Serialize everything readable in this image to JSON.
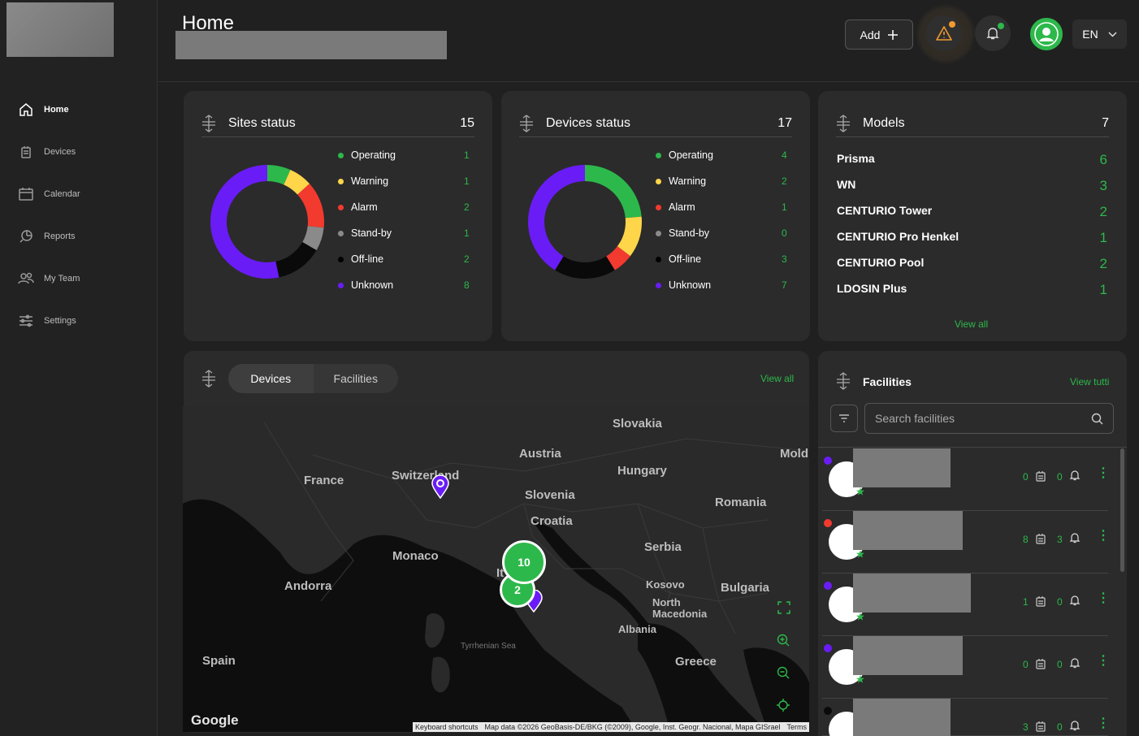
{
  "sidebar": {
    "items": [
      {
        "label": "Home",
        "icon": "home-icon",
        "active": true
      },
      {
        "label": "Devices",
        "icon": "device-icon"
      },
      {
        "label": "Calendar",
        "icon": "calendar-icon"
      },
      {
        "label": "Reports",
        "icon": "reports-icon"
      },
      {
        "label": "My Team",
        "icon": "team-icon"
      },
      {
        "label": "Settings",
        "icon": "settings-icon"
      }
    ]
  },
  "header": {
    "title": "Home",
    "add_label": "Add",
    "language": "EN"
  },
  "colors": {
    "operating": "#2db84b",
    "warning": "#ffd54a",
    "alarm": "#f23a2f",
    "standby": "#8a8a8a",
    "offline": "#0a0a0a",
    "unknown": "#6a1cf6"
  },
  "sites_status": {
    "title": "Sites status",
    "total": "15",
    "rows": [
      {
        "label": "Operating",
        "value": 1,
        "key": "operating"
      },
      {
        "label": "Warning",
        "value": 1,
        "key": "warning"
      },
      {
        "label": "Alarm",
        "value": 2,
        "key": "alarm"
      },
      {
        "label": "Stand-by",
        "value": 1,
        "key": "standby"
      },
      {
        "label": "Off-line",
        "value": 2,
        "key": "offline"
      },
      {
        "label": "Unknown",
        "value": 8,
        "key": "unknown"
      }
    ]
  },
  "devices_status": {
    "title": "Devices status",
    "total": "17",
    "rows": [
      {
        "label": "Operating",
        "value": 4,
        "key": "operating"
      },
      {
        "label": "Warning",
        "value": 2,
        "key": "warning"
      },
      {
        "label": "Alarm",
        "value": 1,
        "key": "alarm"
      },
      {
        "label": "Stand-by",
        "value": 0,
        "key": "standby"
      },
      {
        "label": "Off-line",
        "value": 3,
        "key": "offline"
      },
      {
        "label": "Unknown",
        "value": 7,
        "key": "unknown"
      }
    ]
  },
  "models": {
    "title": "Models",
    "total": "7",
    "rows": [
      {
        "label": "Prisma",
        "value": "6"
      },
      {
        "label": "WN",
        "value": "3"
      },
      {
        "label": "CENTURIO Tower",
        "value": "2"
      },
      {
        "label": "CENTURIO Pro Henkel",
        "value": "1"
      },
      {
        "label": "CENTURIO Pool",
        "value": "2"
      },
      {
        "label": "LDOSIN Plus",
        "value": "1"
      }
    ],
    "view_all": "View all"
  },
  "map_card": {
    "tabs": [
      "Devices",
      "Facilities"
    ],
    "view_all": "View all",
    "labels": {
      "slovakia": "Slovakia",
      "austria": "Austria",
      "hungary": "Hungary",
      "mold": "Mold",
      "france": "France",
      "switzerland": "Switzerland",
      "slovenia": "Slovenia",
      "croatia": "Croatia",
      "romania": "Romania",
      "serbia": "Serbia",
      "monaco": "Monaco",
      "andorra": "Andorra",
      "kosovo": "Kosovo",
      "bulgaria": "Bulgaria",
      "north_macedonia": "North Macedonia",
      "albania": "Albania",
      "tyrrhenian": "Tyrrhenian Sea",
      "spain": "Spain",
      "greece": "Greece",
      "italy": "It"
    },
    "clusters": [
      "10",
      "2"
    ],
    "google": "Google",
    "attribution": [
      "Keyboard shortcuts",
      "Map data ©2026 GeoBasis-DE/BKG (©2009), Google, Inst. Geogr. Nacional, Mapa GISrael",
      "Terms"
    ]
  },
  "facilities": {
    "title": "Facilities",
    "view_all": "View tutti",
    "search_placeholder": "Search facilities",
    "rows": [
      {
        "status_color": "#6a1cf6",
        "a": "0",
        "b": "0"
      },
      {
        "status_color": "#f23a2f",
        "a": "8",
        "b": "3"
      },
      {
        "status_color": "#6a1cf6",
        "a": "1",
        "b": "0"
      },
      {
        "status_color": "#6a1cf6",
        "a": "0",
        "b": "0"
      },
      {
        "status_color": "#0a0a0a",
        "a": "3",
        "b": "0"
      }
    ]
  }
}
